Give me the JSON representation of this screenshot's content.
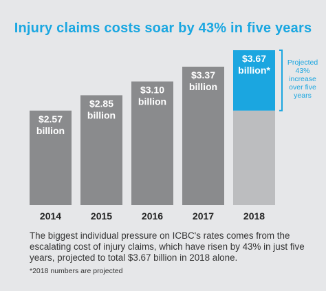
{
  "title": "Injury claims costs soar by 43% in five years",
  "body_text": "The biggest individual pressure on ICBC's rates comes from the escalating cost of injury claims, which have risen by 43% in just five years, projected to total $3.67 billion in 2018 alone.",
  "footnote": "*2018 numbers are projected",
  "annotation": [
    "Projected",
    "43%",
    "increase",
    "over five",
    "years"
  ],
  "colors": {
    "background": "#e6e7e9",
    "bar": "#8a8b8d",
    "projected": "#1ba6e0",
    "base_2018": "#bcbdbf",
    "title": "#1aa7e1",
    "text": "#333333"
  },
  "chart_data": {
    "type": "bar",
    "categories": [
      "2014",
      "2015",
      "2016",
      "2017",
      "2018"
    ],
    "values": [
      2.57,
      2.85,
      3.1,
      3.37,
      3.67
    ],
    "value_labels": [
      [
        "$2.57",
        "billion"
      ],
      [
        "$2.85",
        "billion"
      ],
      [
        "$3.10",
        "billion"
      ],
      [
        "$3.37",
        "billion"
      ],
      [
        "$3.67",
        "billion*"
      ]
    ],
    "projected_base_2013": 2.57,
    "unit": "billion",
    "title": "Injury claims costs soar by 43% in five years",
    "xlabel": "",
    "ylabel": "",
    "grid": false,
    "legend": false
  }
}
